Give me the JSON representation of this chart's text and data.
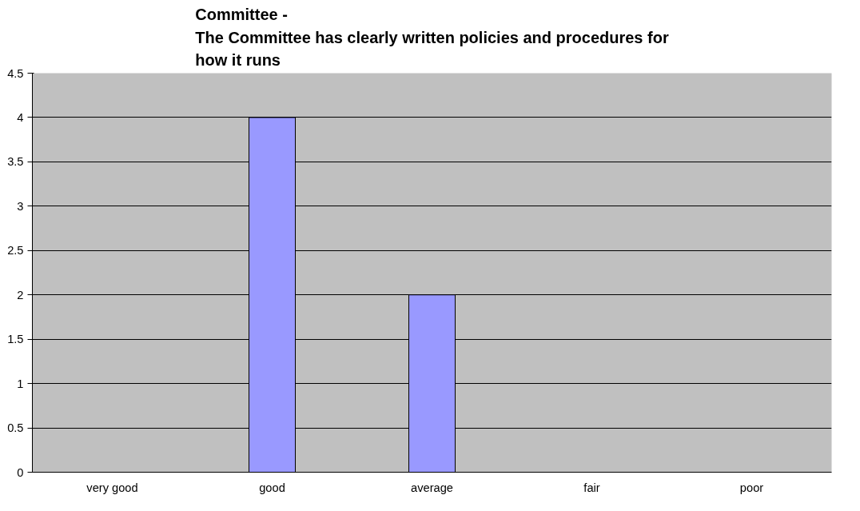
{
  "chart_data": {
    "type": "bar",
    "title": "Committee -\nThe Committee has clearly written policies and procedures for\nhow it runs",
    "categories": [
      "very good",
      "good",
      "average",
      "fair",
      "poor"
    ],
    "values": [
      0,
      4,
      2,
      0,
      0
    ],
    "color": "#9999ff",
    "ylim": [
      0,
      4.5
    ],
    "yticks": [
      0,
      {
        "value": 0.5,
        "label": "0.5"
      },
      1,
      {
        "value": 1.5,
        "label": "1.5"
      },
      2,
      {
        "value": 2.5,
        "label": "2.5"
      },
      3,
      {
        "value": 3.5,
        "label": "3.5"
      },
      4,
      {
        "value": 4.5,
        "label": "4.5"
      }
    ],
    "grid": "y"
  }
}
